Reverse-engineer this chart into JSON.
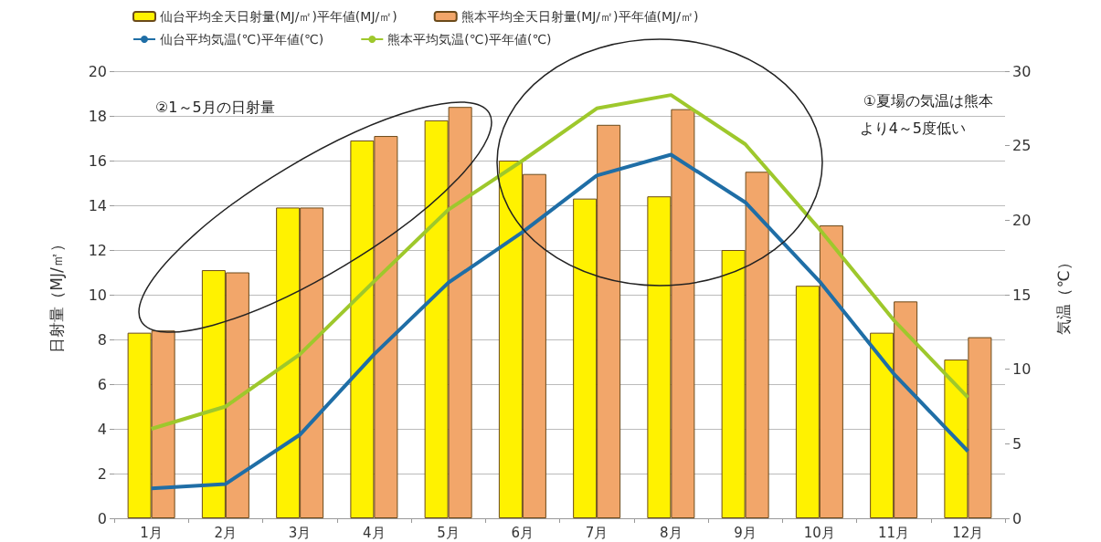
{
  "chart_data": {
    "type": "bar",
    "xlabel": null,
    "ylabel": "日射量（MJ/㎡）",
    "y2label": "気温（℃）",
    "categories": [
      "1月",
      "2月",
      "3月",
      "4月",
      "5月",
      "6月",
      "7月",
      "8月",
      "9月",
      "10月",
      "11月",
      "12月"
    ],
    "series": [
      {
        "name": "仙台平均全天日射量(MJ/㎡)平年値(MJ/㎡)",
        "color": "#fff200",
        "values": [
          8.3,
          11.1,
          13.9,
          16.9,
          17.8,
          16.0,
          14.3,
          14.4,
          12.0,
          10.4,
          8.3,
          7.1
        ]
      },
      {
        "name": "熊本平均全天日射量(MJ/㎡)平年値(MJ/㎡)",
        "color": "#f2a66a",
        "values": [
          8.4,
          11.0,
          13.9,
          17.1,
          18.4,
          15.4,
          17.6,
          18.3,
          15.5,
          13.1,
          9.7,
          8.1
        ]
      },
      {
        "name": "仙台平均気温(℃)平年値(℃)",
        "type": "line",
        "axis": "y2",
        "color": "#1f6ea6",
        "values": [
          2.0,
          2.3,
          5.6,
          11.0,
          15.8,
          19.2,
          23.0,
          24.4,
          21.2,
          15.9,
          9.7,
          4.5
        ]
      },
      {
        "name": "熊本平均気温(℃)平年値(℃)",
        "type": "line",
        "axis": "y2",
        "color": "#9ec82c",
        "values": [
          6.0,
          7.5,
          11.0,
          15.9,
          20.7,
          24.0,
          27.5,
          28.4,
          25.1,
          19.4,
          13.3,
          8.1
        ]
      }
    ],
    "ylim": [
      0,
      20
    ],
    "yticks": [
      0,
      2,
      4,
      6,
      8,
      10,
      12,
      14,
      16,
      18,
      20
    ],
    "y2lim": [
      0,
      30
    ],
    "y2ticks": [
      0,
      5,
      10,
      15,
      20,
      25,
      30
    ],
    "grid": "y",
    "legend": "top",
    "marker": "none",
    "line_style": "solid",
    "annotations": [
      "②1～5月の日射量",
      "①夏場の気温は熊本",
      "より4～5度低い"
    ]
  }
}
